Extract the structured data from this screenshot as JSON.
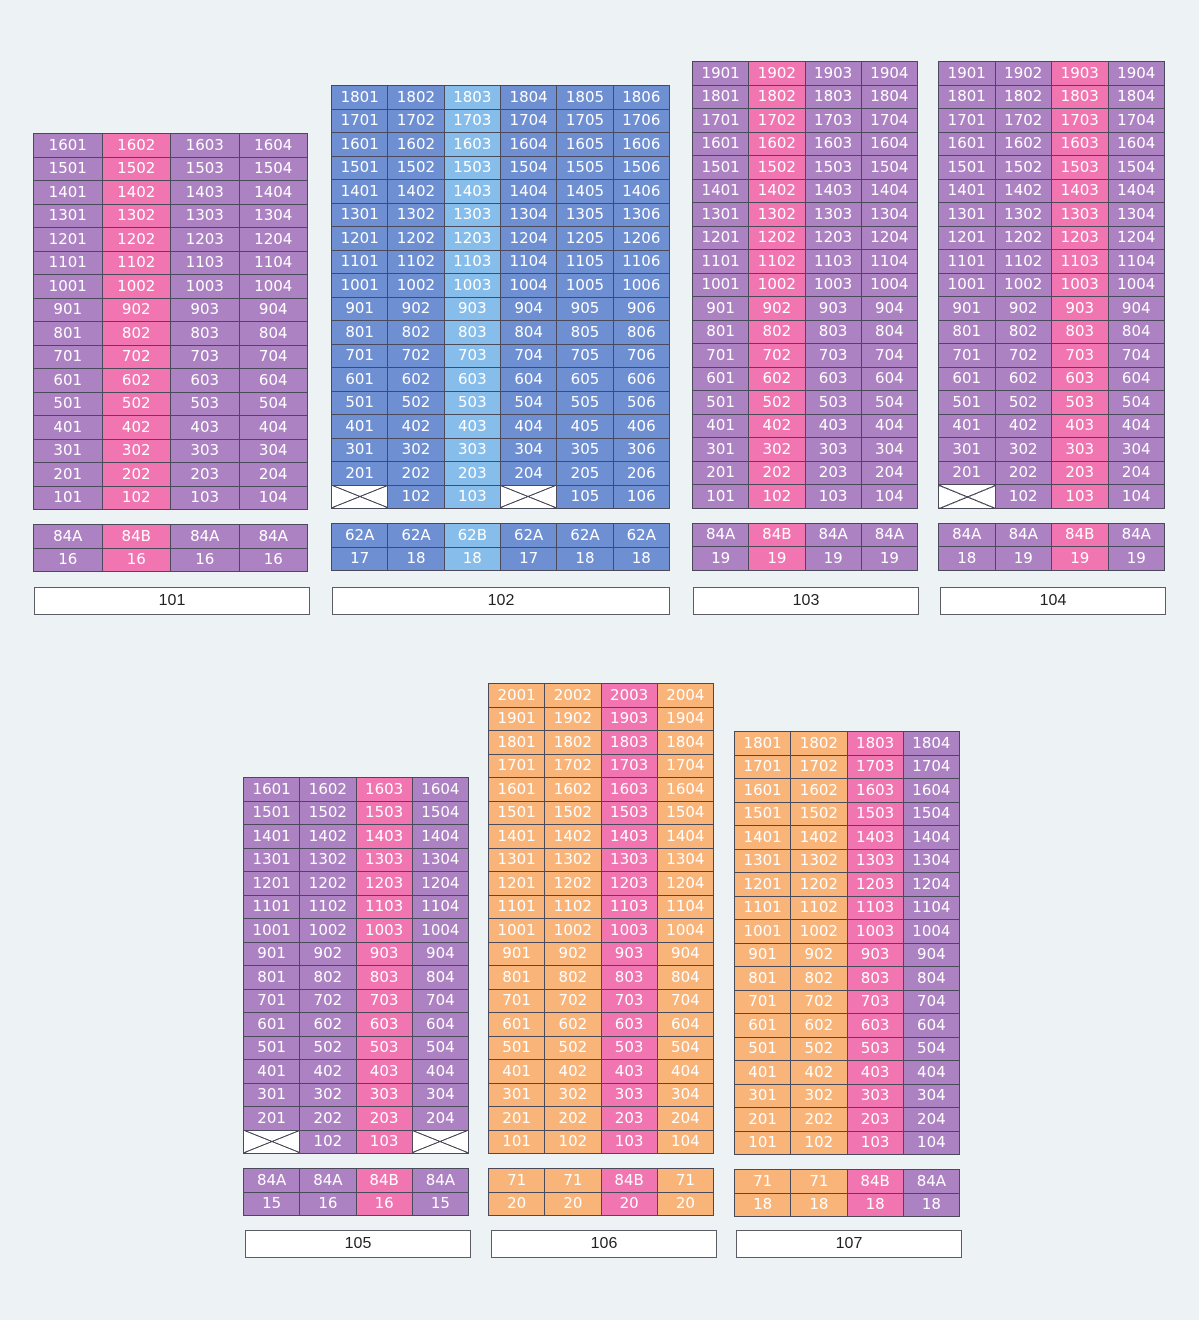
{
  "colors": {
    "purple": "#ad82c2",
    "pink": "#f075b0",
    "blue": "#6f8fd3",
    "light_blue": "#86bdea",
    "orange": "#f9b47a",
    "background": "#edf2f5"
  },
  "buildings": [
    {
      "name": "101",
      "floors": 16,
      "units": 4,
      "col_colors": [
        "purple",
        "pink",
        "purple",
        "purple"
      ],
      "empty": [],
      "types": [
        "84A",
        "84B",
        "84A",
        "84A"
      ],
      "counts": [
        "16",
        "16",
        "16",
        "16"
      ]
    },
    {
      "name": "102",
      "floors": 18,
      "units": 6,
      "col_colors": [
        "blue",
        "blue",
        "light_blue",
        "blue",
        "blue",
        "blue"
      ],
      "empty": [
        "101",
        "104"
      ],
      "types": [
        "62A",
        "62A",
        "62B",
        "62A",
        "62A",
        "62A"
      ],
      "counts": [
        "17",
        "18",
        "18",
        "17",
        "18",
        "18"
      ]
    },
    {
      "name": "103",
      "floors": 19,
      "units": 4,
      "col_colors": [
        "purple",
        "pink",
        "purple",
        "purple"
      ],
      "empty": [],
      "types": [
        "84A",
        "84B",
        "84A",
        "84A"
      ],
      "counts": [
        "19",
        "19",
        "19",
        "19"
      ]
    },
    {
      "name": "104",
      "floors": 19,
      "units": 4,
      "col_colors": [
        "purple",
        "purple",
        "pink",
        "purple"
      ],
      "empty": [
        "101"
      ],
      "types": [
        "84A",
        "84A",
        "84B",
        "84A"
      ],
      "counts": [
        "18",
        "19",
        "19",
        "19"
      ]
    },
    {
      "name": "105",
      "floors": 16,
      "units": 4,
      "col_colors": [
        "purple",
        "purple",
        "pink",
        "purple"
      ],
      "empty": [
        "101",
        "104"
      ],
      "types": [
        "84A",
        "84A",
        "84B",
        "84A"
      ],
      "counts": [
        "15",
        "16",
        "16",
        "15"
      ]
    },
    {
      "name": "106",
      "floors": 20,
      "units": 4,
      "col_colors": [
        "orange",
        "orange",
        "pink",
        "orange"
      ],
      "empty": [],
      "types": [
        "71",
        "71",
        "84B",
        "71"
      ],
      "counts": [
        "20",
        "20",
        "20",
        "20"
      ]
    },
    {
      "name": "107",
      "floors": 18,
      "units": 4,
      "col_colors": [
        "orange",
        "orange",
        "pink",
        "purple"
      ],
      "empty": [],
      "types": [
        "71",
        "71",
        "84B",
        "84A"
      ],
      "counts": [
        "18",
        "18",
        "18",
        "18"
      ]
    }
  ]
}
